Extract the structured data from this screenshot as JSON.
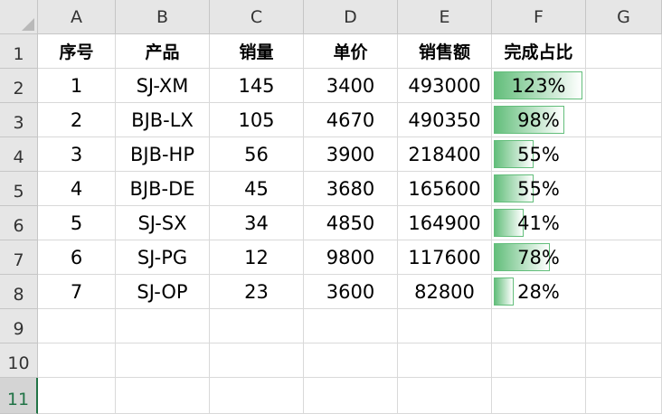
{
  "columns": [
    "A",
    "B",
    "C",
    "D",
    "E",
    "F",
    "G"
  ],
  "rows": [
    "1",
    "2",
    "3",
    "4",
    "5",
    "6",
    "7",
    "8",
    "9",
    "10",
    "11"
  ],
  "active_row": "11",
  "header": [
    "序号",
    "产品",
    "销量",
    "单价",
    "销售额",
    "完成占比"
  ],
  "data": [
    {
      "no": "1",
      "product": "SJ-XM",
      "qty": "145",
      "price": "3400",
      "sales": "493000",
      "pct": "123%",
      "pct_value": 1.23
    },
    {
      "no": "2",
      "product": "BJB-LX",
      "qty": "105",
      "price": "4670",
      "sales": "490350",
      "pct": "98%",
      "pct_value": 0.98
    },
    {
      "no": "3",
      "product": "BJB-HP",
      "qty": "56",
      "price": "3900",
      "sales": "218400",
      "pct": "55%",
      "pct_value": 0.55
    },
    {
      "no": "4",
      "product": "BJB-DE",
      "qty": "45",
      "price": "3680",
      "sales": "165600",
      "pct": "55%",
      "pct_value": 0.55
    },
    {
      "no": "5",
      "product": "SJ-SX",
      "qty": "34",
      "price": "4850",
      "sales": "164900",
      "pct": "41%",
      "pct_value": 0.41
    },
    {
      "no": "6",
      "product": "SJ-PG",
      "qty": "12",
      "price": "9800",
      "sales": "117600",
      "pct": "78%",
      "pct_value": 0.78
    },
    {
      "no": "7",
      "product": "SJ-OP",
      "qty": "23",
      "price": "3600",
      "sales": "82800",
      "pct": "28%",
      "pct_value": 0.28
    }
  ],
  "colors": {
    "databar": "#63be7b",
    "accent": "#217346"
  }
}
